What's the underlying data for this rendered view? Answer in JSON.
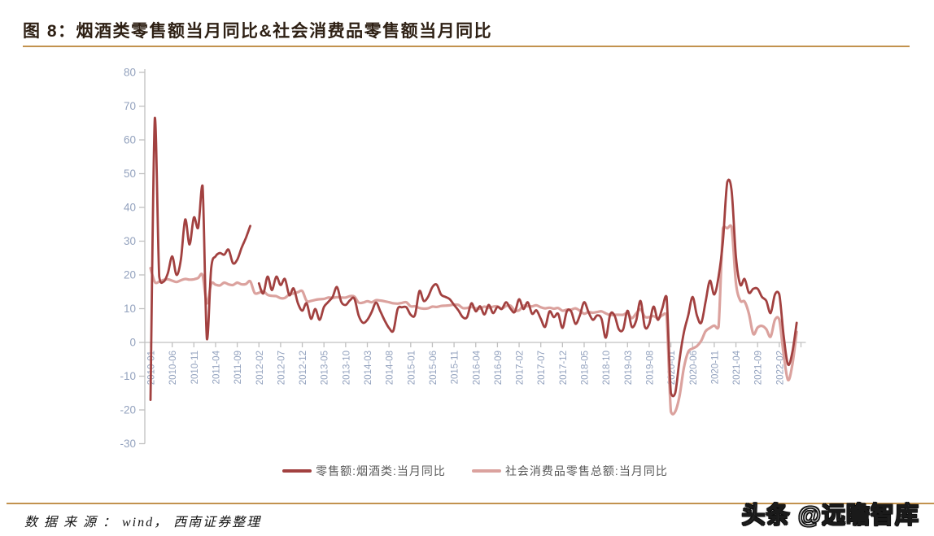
{
  "title": "图 8：烟酒类零售额当月同比&社会消费品零售额当月同比",
  "source_note": "数 据 来 源 ： wind， 西南证券整理",
  "watermark": "头条 @远瞻智库",
  "colors": {
    "title_text": "#2e2014",
    "rule_gold": "#c2924e",
    "axis_line": "#c0c0c0",
    "tick_label": "#93a2be",
    "legend_text": "#595959"
  },
  "chart_data": {
    "type": "line",
    "title": "烟酒类零售额当月同比&社会消费品零售额当月同比",
    "xlabel": "",
    "ylabel": "",
    "x_start": "2010-01",
    "x_end": "2022-06",
    "x_freq": "monthly",
    "grid": false,
    "legend_position": "bottom",
    "ylim": [
      -30,
      80
    ],
    "y_ticks": [
      80,
      70,
      60,
      50,
      40,
      30,
      20,
      10,
      0,
      -10,
      -20,
      -30
    ],
    "x_tick_labels": [
      "2010-01",
      "2010-06",
      "2010-11",
      "2011-04",
      "2011-09",
      "2012-02",
      "2012-07",
      "2012-12",
      "2013-05",
      "2013-10",
      "2014-03",
      "2014-08",
      "2015-01",
      "2015-06",
      "2015-11",
      "2016-04",
      "2016-09",
      "2017-02",
      "2017-07",
      "2017-12",
      "2018-05",
      "2018-10",
      "2019-03",
      "2019-08",
      "2020-01",
      "2020-06",
      "2020-11",
      "2021-04",
      "2021-09",
      "2022-02"
    ],
    "series": [
      {
        "name": "零售额:烟酒类:当月同比",
        "color": "#a24140",
        "values": [
          -17.0,
          66.5,
          19.5,
          18.0,
          20.5,
          25.5,
          20.0,
          24.5,
          36.4,
          29.0,
          37.0,
          34.0,
          46.4,
          1.0,
          22.0,
          25.5,
          26.5,
          26.0,
          27.5,
          23.5,
          24.5,
          28.0,
          31.0,
          34.5,
          null,
          17.5,
          14.5,
          19.5,
          15.5,
          19.5,
          17.0,
          18.8,
          14.0,
          16.0,
          11.6,
          9.4,
          11.6,
          7.0,
          9.9,
          6.7,
          10.5,
          12.0,
          13.5,
          16.4,
          12.0,
          11.1,
          12.5,
          13.0,
          8.0,
          5.8,
          6.7,
          9.0,
          11.8,
          9.2,
          6.5,
          4.3,
          3.5,
          9.9,
          10.4,
          10.4,
          8.2,
          8.2,
          15.2,
          12.3,
          13.5,
          16.4,
          17.1,
          14.2,
          13.5,
          12.8,
          11.1,
          9.5,
          7.5,
          7.5,
          11.6,
          9.2,
          10.7,
          8.3,
          11.1,
          8.7,
          10.5,
          9.9,
          11.9,
          10.0,
          9.0,
          12.8,
          9.9,
          11.9,
          8.5,
          9.5,
          7.0,
          4.6,
          9.2,
          7.5,
          8.5,
          4.3,
          9.2,
          9.2,
          5.5,
          8.0,
          11.9,
          9.0,
          6.7,
          8.0,
          7.0,
          1.4,
          8.3,
          8.0,
          3.9,
          3.9,
          9.4,
          4.6,
          6.5,
          12.3,
          4.6,
          5.5,
          10.6,
          6.7,
          10.0,
          13.5,
          -15.0,
          -15.0,
          -5.0,
          3.0,
          8.0,
          13.5,
          8.0,
          5.8,
          12.0,
          18.3,
          14.2,
          19.5,
          30.0,
          47.5,
          45.0,
          25.5,
          17.1,
          18.8,
          14.7,
          15.9,
          15.9,
          13.5,
          12.3,
          8.7,
          14.2,
          14.2,
          2.0,
          -6.5,
          -3.0,
          5.8
        ]
      },
      {
        "name": "社会消费品零售总额:当月同比",
        "color": "#dba29e",
        "values": [
          22.0,
          17.9,
          18.0,
          18.5,
          18.7,
          18.3,
          17.9,
          18.4,
          18.8,
          18.6,
          18.7,
          19.1,
          19.9,
          11.6,
          17.4,
          17.1,
          16.9,
          17.7,
          17.2,
          17.0,
          17.7,
          17.2,
          17.3,
          18.1,
          14.7,
          14.7,
          15.2,
          14.1,
          13.8,
          13.7,
          13.1,
          13.2,
          14.2,
          14.5,
          14.9,
          15.2,
          12.3,
          12.3,
          12.6,
          12.8,
          12.9,
          13.3,
          13.2,
          13.4,
          13.3,
          13.3,
          13.7,
          13.6,
          11.8,
          11.8,
          12.2,
          11.9,
          12.5,
          12.4,
          12.2,
          11.9,
          11.6,
          11.5,
          11.7,
          11.9,
          10.7,
          10.7,
          10.2,
          10.0,
          10.1,
          10.6,
          10.5,
          10.8,
          10.9,
          11.0,
          11.2,
          11.1,
          10.2,
          10.2,
          10.5,
          10.1,
          10.0,
          10.6,
          10.2,
          10.6,
          10.7,
          10.0,
          10.8,
          10.9,
          9.5,
          9.5,
          10.9,
          10.7,
          10.7,
          11.0,
          10.4,
          10.1,
          10.3,
          10.0,
          10.2,
          9.4,
          9.7,
          9.7,
          10.1,
          9.4,
          8.5,
          9.0,
          8.8,
          9.0,
          9.2,
          8.6,
          8.1,
          8.2,
          8.2,
          8.2,
          8.7,
          7.2,
          8.6,
          9.8,
          7.6,
          7.5,
          7.8,
          7.2,
          8.0,
          8.0,
          -20.5,
          -20.5,
          -15.8,
          -7.5,
          -2.8,
          -1.8,
          -1.1,
          0.5,
          3.3,
          4.3,
          5.0,
          4.6,
          33.8,
          33.8,
          34.2,
          17.7,
          12.4,
          12.1,
          8.5,
          2.5,
          4.4,
          4.9,
          3.9,
          1.7,
          6.7,
          6.7,
          -3.5,
          -11.1,
          -6.7,
          3.1
        ]
      }
    ]
  }
}
